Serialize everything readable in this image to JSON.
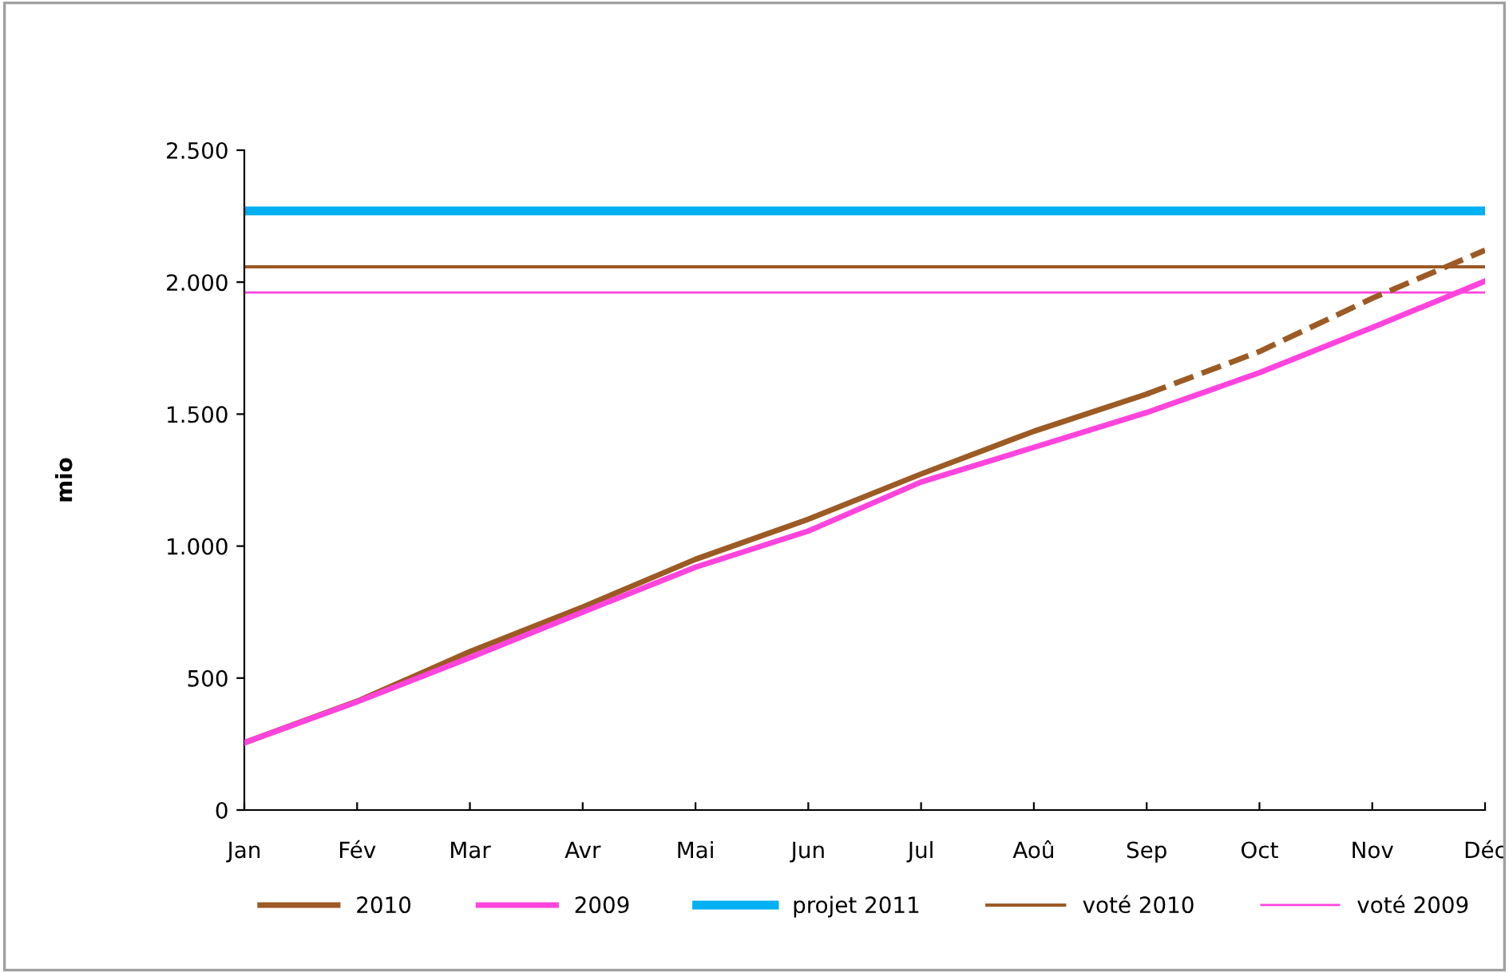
{
  "chart_data": {
    "type": "line",
    "ylabel": "mio",
    "categories": [
      "Jan",
      "Fév",
      "Mar",
      "Avr",
      "Mai",
      "Jun",
      "Jul",
      "Aoû",
      "Sep",
      "Oct",
      "Nov",
      "Déc"
    ],
    "series": [
      {
        "name": "2010",
        "color": "#9c5a24",
        "values": [
          255,
          412,
          600,
          769,
          950,
          1102,
          1273,
          1435,
          1576,
          null,
          null,
          null
        ]
      },
      {
        "color": "#9c5a24",
        "line_style": "dashed",
        "values": [
          null,
          null,
          null,
          null,
          null,
          null,
          null,
          null,
          1576,
          1737,
          1939,
          2121
        ]
      },
      {
        "name": "2009",
        "color": "#ff44dd",
        "values": [
          255,
          410,
          577,
          750,
          920,
          1057,
          1243,
          1374,
          1506,
          1657,
          1828,
          2004
        ]
      }
    ],
    "ref_lines": [
      {
        "axis": "y",
        "value": 2270,
        "label": "projet 2011",
        "color": "#00b0f0"
      },
      {
        "axis": "y",
        "value": 2058,
        "label": "voté 2010",
        "color": "#9c5a24"
      },
      {
        "axis": "y",
        "value": 1961,
        "label": "voté 2009",
        "color": "#ff44dd"
      }
    ],
    "ylim": [
      0,
      2500
    ],
    "yticks": [
      0,
      {
        "value": 500,
        "label": "500"
      },
      {
        "value": 1000,
        "label": "1.000"
      },
      {
        "value": 1500,
        "label": "1.500"
      },
      {
        "value": 2000,
        "label": "2.000"
      },
      {
        "value": 2500,
        "label": "2.500"
      }
    ],
    "grid": false,
    "legend": "bottom",
    "marker": "none"
  }
}
